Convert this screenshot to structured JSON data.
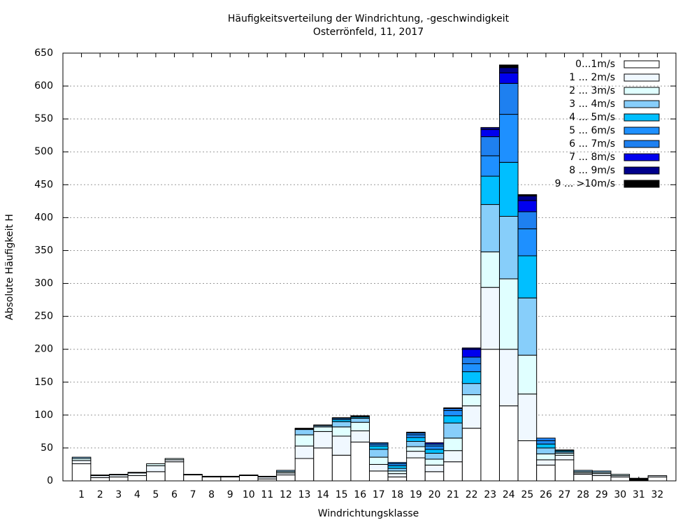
{
  "chart_data": {
    "type": "stacked_bar",
    "title": "Häufigkeitsverteilung der Windrichtung, -geschwindigkeit",
    "subtitle": "Osterrönfeld, 11, 2017",
    "x_label": "Windrichtungsklasse",
    "y_label": "Absolute Häufigkeit H",
    "categories": [
      "1",
      "2",
      "3",
      "4",
      "5",
      "6",
      "7",
      "8",
      "9",
      "10",
      "11",
      "12",
      "13",
      "14",
      "15",
      "16",
      "17",
      "18",
      "19",
      "20",
      "21",
      "22",
      "23",
      "24",
      "25",
      "26",
      "27",
      "28",
      "29",
      "30",
      "31",
      "32"
    ],
    "ylim": [
      0,
      650
    ],
    "yticks": [
      0,
      50,
      100,
      150,
      200,
      250,
      300,
      350,
      400,
      450,
      500,
      550,
      600,
      650
    ],
    "grid": true,
    "legend": "upper right",
    "series": [
      {
        "name": "0...1m/s",
        "color": "#ffffff",
        "values": [
          26,
          5,
          6,
          8,
          14,
          29,
          9,
          6,
          6,
          8,
          3,
          9,
          34,
          50,
          39,
          59,
          15,
          6,
          35,
          14,
          29,
          80,
          200,
          114,
          61,
          24,
          32,
          10,
          8,
          6,
          1,
          6
        ]
      },
      {
        "name": "1 ... 2m/s",
        "color": "#f0f8ff",
        "values": [
          5,
          3,
          3,
          4,
          9,
          3,
          1,
          1,
          1,
          1,
          3,
          3,
          19,
          25,
          29,
          17,
          10,
          5,
          10,
          10,
          17,
          34,
          94,
          86,
          71,
          8,
          7,
          2,
          3,
          2,
          0,
          2
        ]
      },
      {
        "name": "2 ... 3m/s",
        "color": "#e0ffff",
        "values": [
          3,
          1,
          1,
          1,
          3,
          2,
          0,
          0,
          0,
          0,
          1,
          2,
          17,
          7,
          14,
          13,
          11,
          4,
          7,
          9,
          19,
          17,
          54,
          107,
          59,
          9,
          3,
          2,
          2,
          2,
          0,
          0
        ]
      },
      {
        "name": "3 ... 4m/s",
        "color": "#87cefa",
        "values": [
          2,
          0,
          0,
          0,
          0,
          0,
          0,
          0,
          0,
          0,
          0,
          2,
          8,
          2,
          8,
          6,
          12,
          4,
          8,
          9,
          23,
          17,
          72,
          95,
          87,
          9,
          2,
          2,
          2,
          0,
          0,
          0
        ]
      },
      {
        "name": "4 ... 5m/s",
        "color": "#00bfff",
        "values": [
          0,
          0,
          0,
          0,
          0,
          0,
          0,
          0,
          0,
          0,
          0,
          0,
          1,
          1,
          3,
          2,
          5,
          4,
          6,
          6,
          11,
          18,
          43,
          82,
          64,
          6,
          2,
          0,
          0,
          0,
          0,
          0
        ]
      },
      {
        "name": "5 ... 6m/s",
        "color": "#1e90ff",
        "values": [
          0,
          0,
          0,
          0,
          0,
          0,
          0,
          0,
          0,
          0,
          0,
          0,
          1,
          0,
          2,
          1,
          3,
          3,
          4,
          5,
          8,
          12,
          31,
          73,
          41,
          5,
          1,
          0,
          0,
          0,
          0,
          0
        ]
      },
      {
        "name": "6 ... 7m/s",
        "color": "#1e80f0",
        "values": [
          0,
          0,
          0,
          0,
          0,
          0,
          0,
          0,
          0,
          0,
          0,
          0,
          0,
          0,
          1,
          1,
          2,
          2,
          3,
          3,
          3,
          10,
          29,
          47,
          26,
          4,
          0,
          0,
          0,
          0,
          0,
          0
        ]
      },
      {
        "name": "7 ... 8m/s",
        "color": "#0000ee",
        "values": [
          0,
          0,
          0,
          0,
          0,
          0,
          0,
          0,
          0,
          0,
          0,
          0,
          0,
          0,
          0,
          0,
          0,
          0,
          1,
          2,
          1,
          12,
          11,
          16,
          17,
          0,
          0,
          0,
          0,
          0,
          1,
          0
        ]
      },
      {
        "name": "8 ... 9m/s",
        "color": "#00008b",
        "values": [
          0,
          0,
          0,
          0,
          0,
          0,
          0,
          0,
          0,
          0,
          0,
          0,
          0,
          0,
          0,
          0,
          0,
          0,
          0,
          0,
          0,
          2,
          3,
          8,
          7,
          0,
          0,
          0,
          0,
          0,
          1,
          0
        ]
      },
      {
        "name": "9 ... >10m/s",
        "color": "#000000",
        "values": [
          0,
          0,
          0,
          0,
          0,
          0,
          0,
          0,
          0,
          0,
          0,
          0,
          0,
          0,
          0,
          0,
          0,
          0,
          0,
          0,
          0,
          0,
          0,
          4,
          2,
          0,
          0,
          0,
          0,
          0,
          1,
          0
        ]
      }
    ]
  }
}
